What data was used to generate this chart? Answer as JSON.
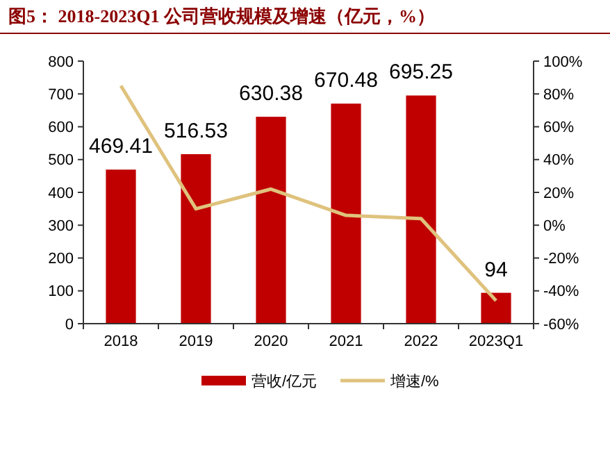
{
  "chart_data": {
    "type": "bar",
    "title": "图5：  2018-2023Q1 公司营收规模及增速（亿元，%）",
    "categories": [
      "2018",
      "2019",
      "2020",
      "2021",
      "2022",
      "2023Q1"
    ],
    "series": [
      {
        "name": "营收/亿元",
        "color": "#c00000",
        "values": [
          469.41,
          516.53,
          630.38,
          670.48,
          695.25,
          94
        ],
        "value_labels": [
          "469.41",
          "516.53",
          "630.38",
          "670.48",
          "695.25",
          "94"
        ]
      },
      {
        "name": "增速/%",
        "type": "line",
        "axis": "y2",
        "color": "#dfc27d",
        "values": [
          85,
          10,
          22,
          6,
          4,
          -46
        ]
      }
    ],
    "ylim": [
      0,
      800
    ],
    "yticks": [
      0,
      100,
      200,
      300,
      400,
      500,
      600,
      700,
      800
    ],
    "y2lim": [
      -60,
      100
    ],
    "y2ticks": [
      {
        "value": -60,
        "label": "-60%"
      },
      {
        "value": -40,
        "label": "-40%"
      },
      {
        "value": -20,
        "label": "-20%"
      },
      {
        "value": 0,
        "label": "0%"
      },
      {
        "value": 20,
        "label": "20%"
      },
      {
        "value": 40,
        "label": "40%"
      },
      {
        "value": 60,
        "label": "60%"
      },
      {
        "value": 80,
        "label": "80%"
      },
      {
        "value": 100,
        "label": "100%"
      }
    ],
    "legend": "bottom",
    "marker": "none",
    "grid": false
  }
}
